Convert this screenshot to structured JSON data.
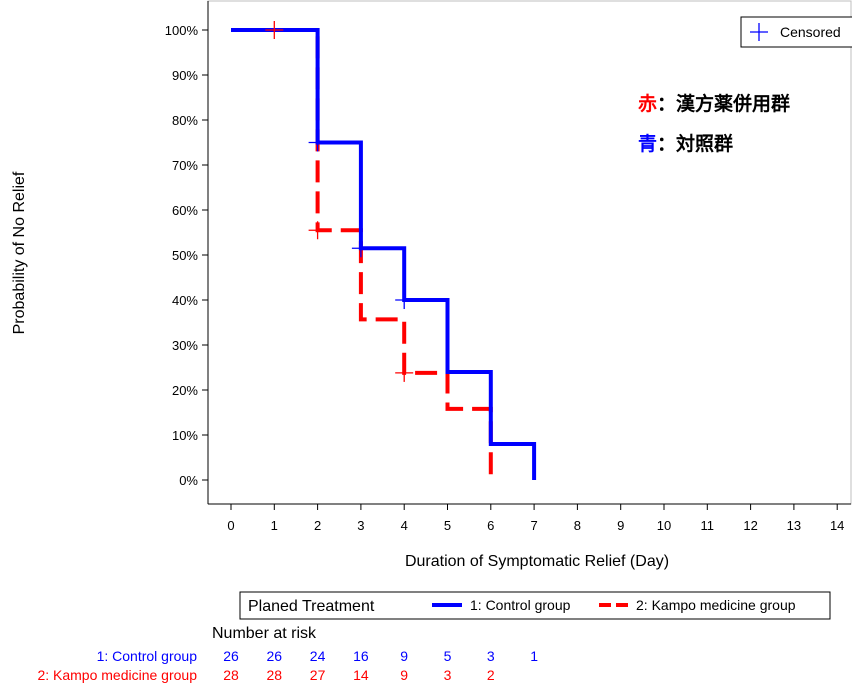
{
  "colors": {
    "control": "#0000ff",
    "kampo": "#ff0000",
    "axis": "#000000",
    "frame": "#bfbfbf"
  },
  "chart_data": {
    "type": "line",
    "subtype": "kaplan-meier-step",
    "xlabel": "Duration of Symptomatic Relief (Day)",
    "ylabel": "Probability of No Relief",
    "xlim": [
      0,
      14
    ],
    "ylim": [
      0,
      1
    ],
    "x_ticks": [
      "0",
      "1",
      "2",
      "3",
      "4",
      "5",
      "6",
      "7",
      "8",
      "9",
      "10",
      "11",
      "12",
      "13",
      "14"
    ],
    "y_ticks": [
      "0%",
      "10%",
      "20%",
      "30%",
      "40%",
      "50%",
      "60%",
      "70%",
      "80%",
      "90%",
      "100%"
    ],
    "grid": false,
    "series": [
      {
        "name": "1: Control group",
        "color": "#0000ff",
        "line_style": "solid",
        "steps": [
          [
            0,
            1.0
          ],
          [
            2,
            0.75
          ],
          [
            3,
            0.515
          ],
          [
            4,
            0.4
          ],
          [
            5,
            0.24
          ],
          [
            6,
            0.08
          ],
          [
            7,
            0.0
          ]
        ],
        "censored": [
          [
            2,
            0.75
          ],
          [
            3,
            0.515
          ],
          [
            4,
            0.4
          ]
        ]
      },
      {
        "name": "2: Kampo medicine group",
        "color": "#ff0000",
        "line_style": "dashed",
        "steps": [
          [
            0,
            1.0
          ],
          [
            2,
            0.555
          ],
          [
            3,
            0.357
          ],
          [
            4,
            0.238
          ],
          [
            5,
            0.158
          ],
          [
            6,
            0.0
          ]
        ],
        "censored": [
          [
            1,
            1.0
          ],
          [
            2,
            0.555
          ],
          [
            4,
            0.238
          ]
        ]
      }
    ],
    "censored_legend": {
      "label": "Censored",
      "position": "top-right"
    },
    "annotations": [
      {
        "key": "赤",
        "text": "：漢方薬併用群",
        "color": "#ff0000"
      },
      {
        "key": "青",
        "text": "：対照群",
        "color": "#0000ff"
      }
    ],
    "legend": {
      "title": "Planed Treatment",
      "entries": [
        "1: Control group",
        "2: Kampo medicine group"
      ],
      "position": "bottom"
    },
    "risk_table": {
      "title": "Number at risk",
      "times": [
        0,
        1,
        2,
        3,
        4,
        5,
        6,
        7
      ],
      "rows": [
        {
          "label": "1: Control group",
          "color": "#0000ff",
          "values": [
            "26",
            "26",
            "24",
            "16",
            "9",
            "5",
            "3",
            "1"
          ]
        },
        {
          "label": "2: Kampo medicine group",
          "color": "#ff0000",
          "values": [
            "28",
            "28",
            "27",
            "14",
            "9",
            "3",
            "2"
          ]
        }
      ]
    }
  }
}
